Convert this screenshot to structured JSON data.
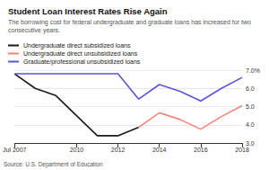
{
  "chart_data": {
    "type": "line",
    "title": "Student Loan Interest Rates Rise Again",
    "subtitle": "The borrowing cost for federal undergraduate and graduate loans has increased for two consecutive years.",
    "source": "Source: U.S. Department of Education",
    "categories": [
      "Jul 2007",
      null,
      null,
      "2010",
      null,
      "2012",
      null,
      "2014",
      null,
      "2016",
      null,
      "2018"
    ],
    "series": [
      {
        "name": "Undergraduate direct subsidized loans",
        "color": "#1a1a1a",
        "values": [
          6.8,
          6.0,
          5.6,
          4.5,
          3.4,
          3.4,
          3.86,
          null,
          null,
          null,
          null,
          null
        ]
      },
      {
        "name": "Undergraduate direct unsubsidized loans",
        "color": "#f4857a",
        "values": [
          null,
          null,
          null,
          null,
          null,
          null,
          3.86,
          4.66,
          4.29,
          3.76,
          4.45,
          5.05
        ]
      },
      {
        "name": "Graduate/professional unsubsidized loans",
        "color": "#5b55d8",
        "values": [
          6.8,
          6.8,
          6.8,
          6.8,
          6.8,
          6.8,
          5.41,
          6.21,
          5.84,
          5.31,
          6.0,
          6.6
        ]
      }
    ],
    "ylim": [
      3,
      7
    ],
    "yticks": [
      {
        "value": 3,
        "label": "3.0"
      },
      {
        "value": 4,
        "label": "4.0"
      },
      {
        "value": 5,
        "label": "5.0"
      },
      {
        "value": 6,
        "label": "6.0"
      },
      {
        "value": 7,
        "label": "7.0%"
      }
    ],
    "grid": true,
    "legend": "top-left"
  }
}
